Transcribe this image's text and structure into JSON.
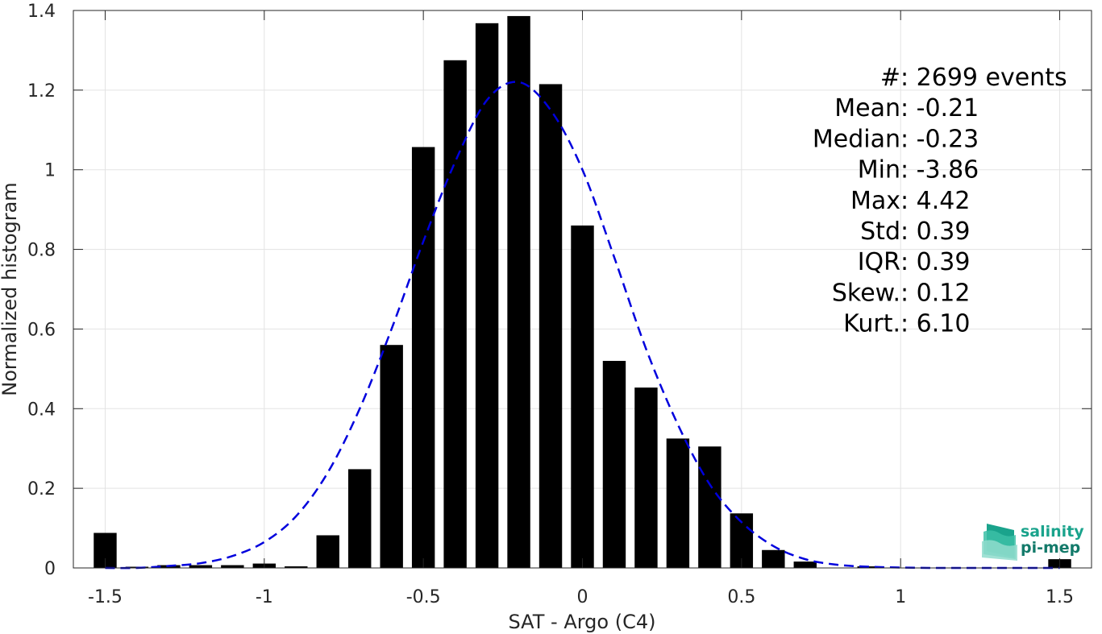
{
  "chart_data": {
    "type": "bar",
    "xlabel": "SAT - Argo (C4)",
    "ylabel": "Normalized histogram",
    "xlim": [
      -1.6,
      1.6
    ],
    "ylim": [
      0,
      1.4
    ],
    "xticks": [
      -1.5,
      -1,
      -0.5,
      0,
      0.5,
      1,
      1.5
    ],
    "xtick_labels": [
      "-1.5",
      "-1",
      "-0.5",
      "0",
      "0.5",
      "1",
      "1.5"
    ],
    "yticks": [
      0,
      0.2,
      0.4,
      0.6,
      0.8,
      1,
      1.2,
      1.4
    ],
    "ytick_labels": [
      "0",
      "0.2",
      "0.4",
      "0.6",
      "0.8",
      "1",
      "1.2",
      "1.4"
    ],
    "grid": true,
    "bar_color": "#000000",
    "curve_color": "#0000dd",
    "bars": {
      "x": [
        -1.5,
        -1.4,
        -1.3,
        -1.2,
        -1.1,
        -1.0,
        -0.9,
        -0.8,
        -0.7,
        -0.6,
        -0.5,
        -0.4,
        -0.3,
        -0.2,
        -0.1,
        0.0,
        0.1,
        0.2,
        0.3,
        0.4,
        0.5,
        0.6,
        0.7,
        0.8,
        0.9,
        1.0,
        1.1,
        1.2,
        1.3,
        1.4,
        1.5
      ],
      "values": [
        0.088,
        0.003,
        0.007,
        0.007,
        0.007,
        0.011,
        0.004,
        0.082,
        0.248,
        0.56,
        1.057,
        1.275,
        1.368,
        1.386,
        1.215,
        0.86,
        0.52,
        0.453,
        0.325,
        0.305,
        0.137,
        0.045,
        0.016,
        0.0,
        0.004,
        0.0,
        0.0,
        0.0,
        0.0,
        0.0,
        0.022
      ]
    },
    "fit_curve": {
      "style": "dashed",
      "x": [
        -1.5,
        -1.4,
        -1.3,
        -1.2,
        -1.1,
        -1.0,
        -0.9,
        -0.8,
        -0.7,
        -0.6,
        -0.5,
        -0.4,
        -0.3,
        -0.2,
        -0.1,
        0.0,
        0.1,
        0.2,
        0.3,
        0.4,
        0.5,
        0.6,
        0.7,
        0.8,
        0.9,
        1.0,
        1.1,
        1.2,
        1.3,
        1.4,
        1.5
      ],
      "y": [
        0.0,
        0.0,
        0.005,
        0.012,
        0.03,
        0.065,
        0.13,
        0.24,
        0.4,
        0.6,
        0.82,
        1.02,
        1.175,
        1.22,
        1.15,
        1.0,
        0.78,
        0.55,
        0.36,
        0.21,
        0.115,
        0.055,
        0.022,
        0.008,
        0.003,
        0.001,
        0.0,
        0.0,
        0.0,
        0.0,
        0.0
      ]
    },
    "annotations": [
      {
        "label": "#  ",
        "value": ": 2699 events"
      },
      {
        "label": "Mean ",
        "value": ": -0.21"
      },
      {
        "label": "Median ",
        "value": ": -0.23"
      },
      {
        "label": "Min ",
        "value": ": -3.86"
      },
      {
        "label": "Max ",
        "value": ": 4.42"
      },
      {
        "label": "Std ",
        "value": ": 0.39"
      },
      {
        "label": "IQR ",
        "value": ": 0.39"
      },
      {
        "label": "Skew. ",
        "value": ": 0.12"
      },
      {
        "label": "Kurt. ",
        "value": ": 6.10"
      }
    ]
  },
  "logo": {
    "line1": "salinity",
    "line2": "pi-mep",
    "color1": "#1aa38c",
    "color2": "#137a6a"
  }
}
